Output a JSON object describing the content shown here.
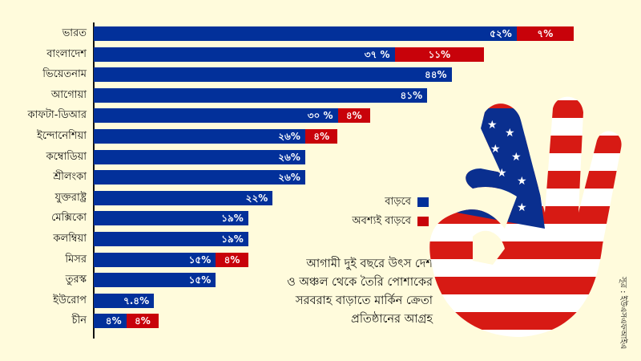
{
  "chart_data": {
    "type": "bar",
    "orientation": "horizontal",
    "stacked": true,
    "title": "আগামী দুই বছরে উৎস দেশ ও অঞ্চল থেকে তৈরি পোশাকের সরবরাহ বাড়াতে মার্কিন ক্রেতা প্রতিষ্ঠানের আগ্রহ",
    "categories": [
      "ভারত",
      "বাংলাদেশ",
      "ভিয়েতনাম",
      "আগোয়া",
      "কাফটা-ডিআর",
      "ইন্দোনেশিয়া",
      "কম্বোডিয়া",
      "শ্রীলংকা",
      "যুক্তরাষ্ট্র",
      "মেক্সিকো",
      "কলম্বিয়া",
      "মিসর",
      "তুরস্ক",
      "ইউরোপ",
      "চীন"
    ],
    "series": [
      {
        "name": "বাড়বে",
        "color": "#02309a",
        "values": [
          52,
          37,
          44,
          41,
          30,
          26,
          26,
          26,
          22,
          19,
          19,
          15,
          15,
          7.4,
          4
        ],
        "labels": [
          "৫২%",
          "৩৭ %",
          "৪৪%",
          "৪১%",
          "৩০ %",
          "২৬%",
          "২৬%",
          "২৬%",
          "২২%",
          "১৯%",
          "১৯%",
          "১৫%",
          "১৫%",
          "৭.৪%",
          "৪%"
        ]
      },
      {
        "name": "অবশ্যই বাড়বে",
        "color": "#c8020a",
        "values": [
          7,
          11,
          0,
          0,
          4,
          4,
          0,
          0,
          0,
          0,
          0,
          4,
          0,
          0,
          4
        ],
        "labels": [
          "৭%",
          "১১%",
          "",
          "",
          "৪%",
          "৪%",
          "",
          "",
          "",
          "",
          "",
          "৪%",
          "",
          "",
          "৪%"
        ]
      }
    ],
    "xlabel": "",
    "ylabel": "",
    "legend_position": "center-right",
    "grid": false,
    "source": "সূত্র : ইউএসএফআইএ"
  },
  "legend": {
    "items": [
      {
        "label": "বাড়বে",
        "color": "#02309a"
      },
      {
        "label": "অবশ্যই বাড়বে",
        "color": "#c8020a"
      }
    ]
  },
  "caption": {
    "lines": [
      "আগামী দুই বছরে উৎস দেশ",
      "ও অঞ্চল থেকে তৈরি পোশাকের",
      "সরবরাহ বাড়াতে মার্কিন ক্রেতা",
      "প্রতিষ্ঠানের আগ্রহ"
    ]
  },
  "source": "সূত্র : ইউএসএফআইএ",
  "illustration": "us-flag-ok-hand"
}
